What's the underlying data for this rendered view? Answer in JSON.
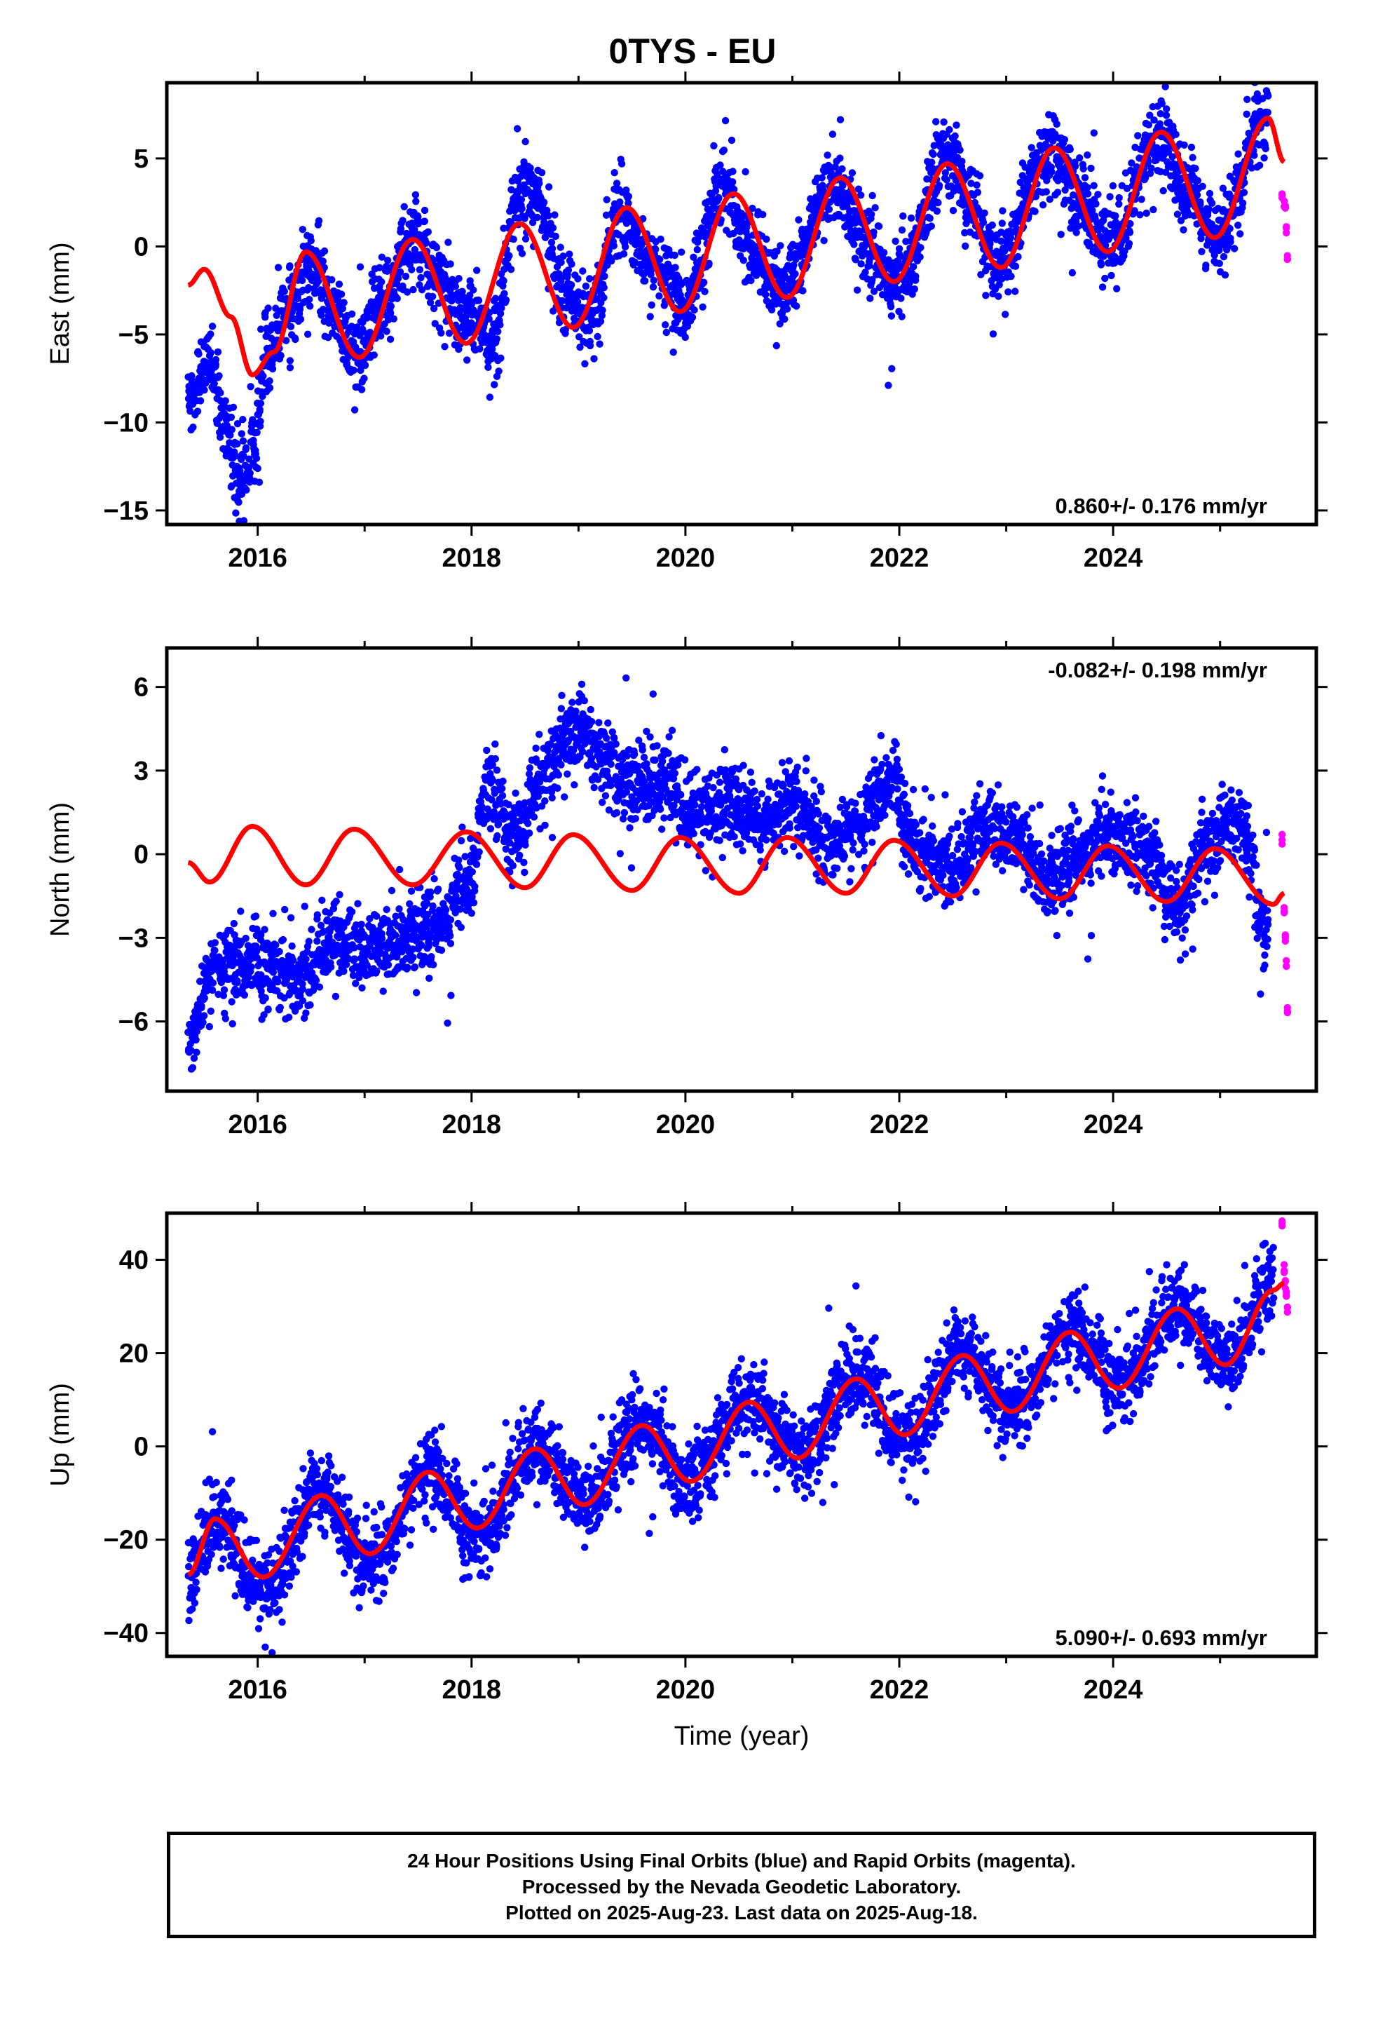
{
  "title": "0TYS - EU",
  "footer": {
    "line1": "24 Hour Positions Using Final Orbits (blue) and Rapid Orbits (magenta).",
    "line2": "Processed by the Nevada Geodetic Laboratory.",
    "line3": "Plotted on 2025-Aug-23. Last data on 2025-Aug-18."
  },
  "colors": {
    "final_orbits": "#0000ff",
    "rapid_orbits": "#ff00ff",
    "model_fit": "#ff0000",
    "frame": "#000000"
  },
  "chart_data": [
    {
      "type": "scatter",
      "component": "east",
      "ylabel": "East (mm)",
      "xlabel": "",
      "xlim": [
        2015.15,
        2025.9
      ],
      "ylim": [
        -15.8,
        9.3
      ],
      "xticks": [
        2016,
        2018,
        2020,
        2022,
        2024
      ],
      "yticks": [
        -15,
        -10,
        -5,
        0,
        5
      ],
      "rate_label": "0.860+/- 0.176 mm/yr",
      "rate_position": "bottom-right",
      "grid": false,
      "final_orbits_trend": [
        [
          2015.35,
          -8.5
        ],
        [
          2015.55,
          -6.5
        ],
        [
          2015.7,
          -10.5
        ],
        [
          2015.85,
          -13.0
        ],
        [
          2015.95,
          -11.5
        ],
        [
          2016.1,
          -6.0
        ],
        [
          2016.3,
          -3.5
        ],
        [
          2016.5,
          -1.0
        ],
        [
          2016.75,
          -4.0
        ],
        [
          2016.9,
          -6.0
        ],
        [
          2017.2,
          -3.0
        ],
        [
          2017.45,
          0.5
        ],
        [
          2017.75,
          -2.5
        ],
        [
          2017.95,
          -4.0
        ],
        [
          2018.2,
          -5.0
        ],
        [
          2018.45,
          3.0
        ],
        [
          2018.6,
          3.0
        ],
        [
          2018.85,
          -2.5
        ],
        [
          2019.1,
          -4.0
        ],
        [
          2019.4,
          2.0
        ],
        [
          2019.7,
          -1.0
        ],
        [
          2020.0,
          -3.5
        ],
        [
          2020.35,
          3.5
        ],
        [
          2020.6,
          0.0
        ],
        [
          2020.9,
          -2.5
        ],
        [
          2021.4,
          3.5
        ],
        [
          2021.7,
          0.0
        ],
        [
          2021.95,
          -2.0
        ],
        [
          2022.45,
          5.0
        ],
        [
          2022.7,
          2.0
        ],
        [
          2022.9,
          -1.0
        ],
        [
          2023.45,
          5.5
        ],
        [
          2023.7,
          2.5
        ],
        [
          2023.95,
          0.0
        ],
        [
          2024.45,
          6.5
        ],
        [
          2024.7,
          3.0
        ],
        [
          2024.95,
          0.5
        ],
        [
          2025.45,
          7.5
        ]
      ],
      "rapid_orbits": [
        [
          2025.58,
          3.0
        ],
        [
          2025.6,
          2.5
        ],
        [
          2025.61,
          2.0
        ],
        [
          2025.62,
          1.0
        ],
        [
          2025.63,
          -0.5
        ]
      ],
      "model_fit": {
        "description_points": [
          [
            2015.35,
            -2.2
          ],
          [
            2015.5,
            -1.3
          ],
          [
            2015.75,
            -4.0
          ],
          [
            2015.95,
            -7.3
          ],
          [
            2016.15,
            -6.0
          ],
          [
            2016.45,
            -0.3
          ],
          [
            2016.95,
            -6.3
          ],
          [
            2017.45,
            0.4
          ],
          [
            2017.95,
            -5.5
          ],
          [
            2018.45,
            1.3
          ],
          [
            2018.95,
            -4.6
          ],
          [
            2019.45,
            2.2
          ],
          [
            2019.95,
            -3.7
          ],
          [
            2020.45,
            3.0
          ],
          [
            2020.95,
            -2.9
          ],
          [
            2021.45,
            3.9
          ],
          [
            2021.95,
            -2.0
          ],
          [
            2022.45,
            4.7
          ],
          [
            2022.95,
            -1.2
          ],
          [
            2023.45,
            5.6
          ],
          [
            2023.95,
            -0.3
          ],
          [
            2024.45,
            6.5
          ],
          [
            2024.95,
            0.5
          ],
          [
            2025.45,
            7.3
          ],
          [
            2025.6,
            4.8
          ]
        ]
      }
    },
    {
      "type": "scatter",
      "component": "north",
      "ylabel": "North (mm)",
      "xlabel": "",
      "xlim": [
        2015.15,
        2025.9
      ],
      "ylim": [
        -8.5,
        7.4
      ],
      "xticks": [
        2016,
        2018,
        2020,
        2022,
        2024
      ],
      "yticks": [
        -6,
        -3,
        0,
        3,
        6
      ],
      "rate_label": "-0.082+/- 0.198 mm/yr",
      "rate_position": "top-right",
      "grid": false,
      "final_orbits_trend": [
        [
          2015.35,
          -6.5
        ],
        [
          2015.6,
          -4.0
        ],
        [
          2016.0,
          -4.0
        ],
        [
          2016.4,
          -4.5
        ],
        [
          2016.7,
          -3.0
        ],
        [
          2017.0,
          -3.5
        ],
        [
          2017.4,
          -3.0
        ],
        [
          2017.7,
          -2.5
        ],
        [
          2017.95,
          -1.0
        ],
        [
          2018.15,
          2.5
        ],
        [
          2018.4,
          0.5
        ],
        [
          2018.7,
          3.0
        ],
        [
          2018.95,
          4.5
        ],
        [
          2019.2,
          3.5
        ],
        [
          2019.5,
          2.5
        ],
        [
          2019.8,
          2.5
        ],
        [
          2020.1,
          1.5
        ],
        [
          2020.4,
          2.0
        ],
        [
          2020.7,
          1.0
        ],
        [
          2021.0,
          2.0
        ],
        [
          2021.3,
          0.5
        ],
        [
          2021.6,
          1.0
        ],
        [
          2021.9,
          2.5
        ],
        [
          2022.2,
          0.0
        ],
        [
          2022.5,
          -0.5
        ],
        [
          2022.8,
          1.0
        ],
        [
          2023.1,
          0.5
        ],
        [
          2023.4,
          -1.0
        ],
        [
          2023.7,
          0.0
        ],
        [
          2024.0,
          1.0
        ],
        [
          2024.3,
          0.0
        ],
        [
          2024.6,
          -2.0
        ],
        [
          2024.9,
          0.5
        ],
        [
          2025.2,
          1.0
        ],
        [
          2025.45,
          -3.0
        ]
      ],
      "rapid_orbits": [
        [
          2025.58,
          0.5
        ],
        [
          2025.6,
          -2.0
        ],
        [
          2025.61,
          -3.0
        ],
        [
          2025.62,
          -4.0
        ],
        [
          2025.63,
          -5.5
        ]
      ],
      "model_fit": {
        "description_points": [
          [
            2015.35,
            -0.3
          ],
          [
            2015.55,
            -1.0
          ],
          [
            2015.95,
            1.0
          ],
          [
            2016.45,
            -1.1
          ],
          [
            2016.9,
            0.9
          ],
          [
            2017.45,
            -1.1
          ],
          [
            2017.95,
            0.8
          ],
          [
            2018.5,
            -1.2
          ],
          [
            2018.95,
            0.7
          ],
          [
            2019.5,
            -1.3
          ],
          [
            2019.95,
            0.6
          ],
          [
            2020.5,
            -1.4
          ],
          [
            2020.95,
            0.6
          ],
          [
            2021.5,
            -1.4
          ],
          [
            2021.95,
            0.5
          ],
          [
            2022.5,
            -1.5
          ],
          [
            2022.95,
            0.4
          ],
          [
            2023.5,
            -1.6
          ],
          [
            2023.95,
            0.3
          ],
          [
            2024.5,
            -1.7
          ],
          [
            2024.95,
            0.2
          ],
          [
            2025.5,
            -1.8
          ],
          [
            2025.6,
            -1.4
          ]
        ]
      }
    },
    {
      "type": "scatter",
      "component": "up",
      "ylabel": "Up (mm)",
      "xlabel": "Time (year)",
      "xlim": [
        2015.15,
        2025.9
      ],
      "ylim": [
        -45,
        50
      ],
      "xticks": [
        2016,
        2018,
        2020,
        2022,
        2024
      ],
      "yticks": [
        -40,
        -20,
        0,
        20,
        40
      ],
      "rate_label": "5.090+/- 0.693 mm/yr",
      "rate_position": "bottom-right",
      "grid": false,
      "final_orbits_trend": [
        [
          2015.35,
          -28
        ],
        [
          2015.6,
          -16
        ],
        [
          2016.05,
          -30
        ],
        [
          2016.6,
          -10
        ],
        [
          2017.05,
          -25
        ],
        [
          2017.6,
          -5
        ],
        [
          2018.05,
          -20
        ],
        [
          2018.6,
          0
        ],
        [
          2019.05,
          -12
        ],
        [
          2019.6,
          5
        ],
        [
          2020.05,
          -7
        ],
        [
          2020.6,
          10
        ],
        [
          2021.05,
          -2
        ],
        [
          2021.6,
          15
        ],
        [
          2022.05,
          2
        ],
        [
          2022.6,
          20
        ],
        [
          2023.05,
          8
        ],
        [
          2023.6,
          25
        ],
        [
          2024.05,
          13
        ],
        [
          2024.6,
          30
        ],
        [
          2025.05,
          18
        ],
        [
          2025.5,
          35
        ]
      ],
      "rapid_orbits": [
        [
          2025.58,
          48
        ],
        [
          2025.6,
          38
        ],
        [
          2025.61,
          35
        ],
        [
          2025.62,
          32
        ],
        [
          2025.63,
          30
        ]
      ],
      "model_fit": {
        "description_points": [
          [
            2015.35,
            -27.5
          ],
          [
            2015.6,
            -15.5
          ],
          [
            2016.05,
            -28
          ],
          [
            2016.6,
            -10.5
          ],
          [
            2017.05,
            -23
          ],
          [
            2017.6,
            -5.5
          ],
          [
            2018.05,
            -17.5
          ],
          [
            2018.6,
            -0.5
          ],
          [
            2019.05,
            -12.5
          ],
          [
            2019.6,
            4.5
          ],
          [
            2020.05,
            -7.5
          ],
          [
            2020.6,
            9.5
          ],
          [
            2021.05,
            -2.5
          ],
          [
            2021.6,
            14.5
          ],
          [
            2022.05,
            2.5
          ],
          [
            2022.6,
            19.5
          ],
          [
            2023.05,
            7.5
          ],
          [
            2023.6,
            24.5
          ],
          [
            2024.05,
            12.5
          ],
          [
            2024.6,
            29.5
          ],
          [
            2025.05,
            17.5
          ],
          [
            2025.5,
            33.5
          ],
          [
            2025.6,
            35
          ]
        ]
      }
    }
  ]
}
